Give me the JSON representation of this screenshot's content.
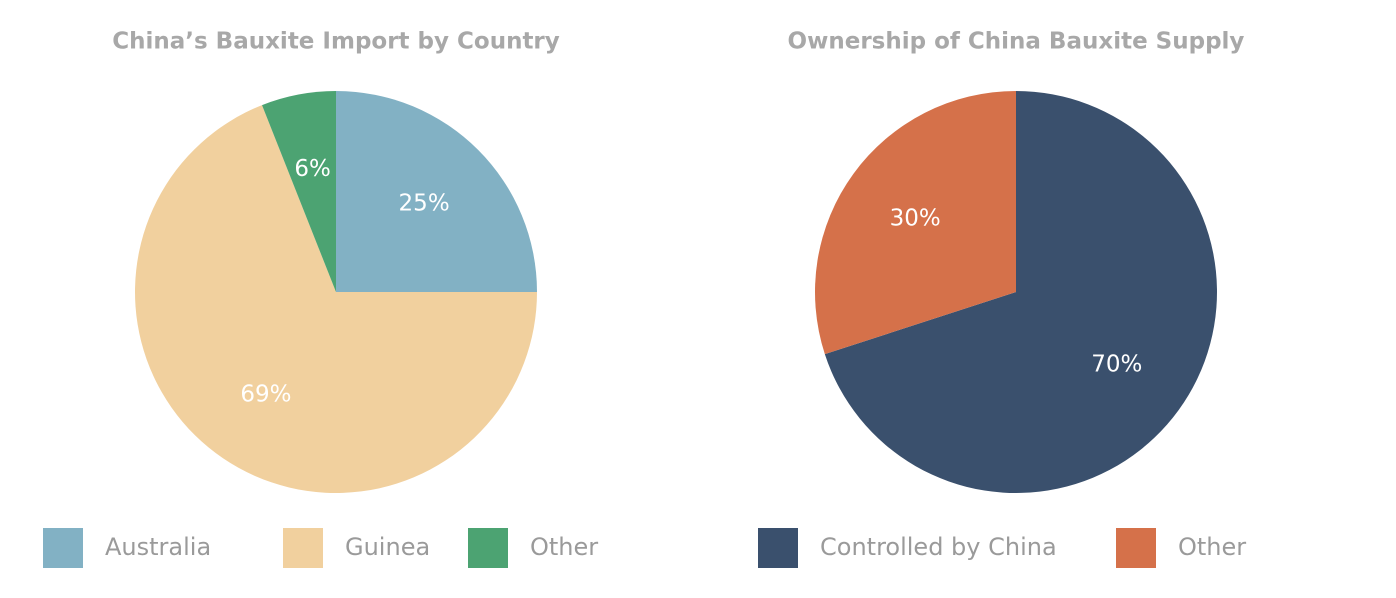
{
  "chart_data": [
    {
      "type": "pie",
      "title": "China’s Bauxite Import by Country",
      "categories": [
        "Australia",
        "Guinea",
        "Other"
      ],
      "values": [
        25,
        69,
        6
      ],
      "value_labels": [
        "25%",
        "69%",
        "6%"
      ],
      "colors": [
        "#82b1c4",
        "#f1d09e",
        "#4ca372"
      ]
    },
    {
      "type": "pie",
      "title": "Ownership of China Bauxite Supply",
      "categories": [
        "Controlled by China",
        "Other"
      ],
      "values": [
        70,
        30
      ],
      "value_labels": [
        "70%",
        "30%"
      ],
      "colors": [
        "#3a506d",
        "#d5714a"
      ]
    }
  ]
}
